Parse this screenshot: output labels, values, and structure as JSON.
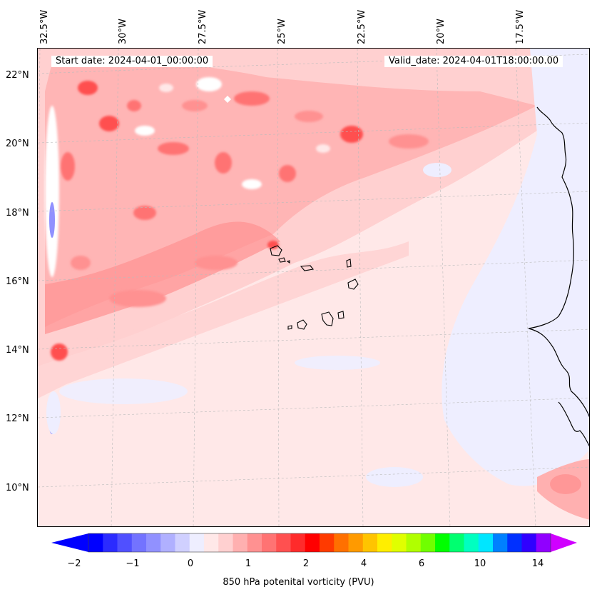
{
  "header": {
    "start_date": "Start date: 2024-04-01_00:00:00",
    "valid_date": "Valid_date: 2024-04-01T18:00:00.00"
  },
  "map": {
    "projection": "lambert-conformal",
    "longitude_labels": [
      "32.5°W",
      "30°W",
      "27.5°W",
      "25°W",
      "22.5°W",
      "20°W",
      "17.5°W"
    ],
    "latitude_labels": [
      "22°N",
      "20°N",
      "18°N",
      "16°N",
      "14°N",
      "12°N",
      "10°N"
    ],
    "gridlines": true,
    "features": [
      "coastline-west-africa",
      "cape-verde-islands"
    ]
  },
  "colorbar": {
    "label": "850 hPa potenital vorticity (PVU)",
    "tick_labels": [
      "−2",
      "−1",
      "0",
      "1",
      "2",
      "4",
      "6",
      "10",
      "14"
    ],
    "extend": "both",
    "colors": [
      "#0000ff",
      "#2b2bff",
      "#5050ff",
      "#7373ff",
      "#9191ff",
      "#b0b0ff",
      "#d0d0ff",
      "#eeeeff",
      "#ffe8e8",
      "#ffd0d0",
      "#ffb0b0",
      "#ff9191",
      "#ff7373",
      "#ff5050",
      "#ff2b2b",
      "#ff0000",
      "#ff3a00",
      "#ff7000",
      "#ff9a00",
      "#ffc400",
      "#ffee00",
      "#e0ff00",
      "#b0ff00",
      "#70ff00",
      "#00ff00",
      "#00ff70",
      "#00ffc0",
      "#00e6ff",
      "#0080ff",
      "#0030ff",
      "#3000ff",
      "#9000ff"
    ],
    "under_color": "#0000ff",
    "over_color": "#d000ff"
  }
}
